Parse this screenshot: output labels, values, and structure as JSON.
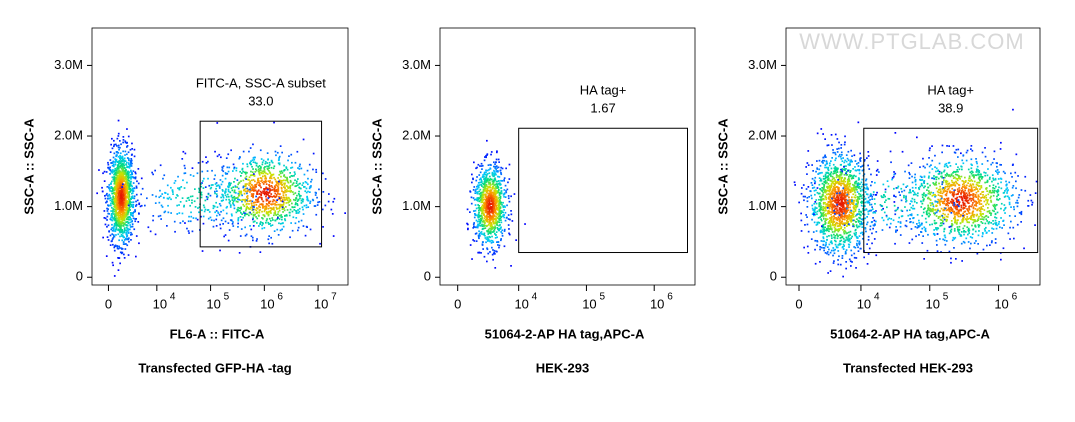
{
  "watermark": "WWW.PTGLAB.COM",
  "chart_data": [
    {
      "type": "scatter",
      "x_label": "FL6-A :: FITC-A",
      "y_label": "SSC-A :: SSC-A",
      "caption": "Transfected GFP-HA -tag",
      "xlim": [
        -3400,
        36000000
      ],
      "ylim": [
        -110000,
        3530000
      ],
      "xticks": [
        0,
        {
          "value": 10000,
          "label": "10",
          "exponent": "4"
        },
        {
          "value": 100000,
          "label": "10",
          "exponent": "5"
        },
        {
          "value": 1000000,
          "label": "10",
          "exponent": "6"
        },
        {
          "value": 10000000,
          "label": "10",
          "exponent": "7"
        }
      ],
      "yticks": [
        0,
        {
          "value": 1000000,
          "label": "1.0M"
        },
        {
          "value": 2000000,
          "label": "2.0M"
        },
        {
          "value": 3000000,
          "label": "3.0M"
        }
      ],
      "gate": {
        "name": "FITC-A, SSC-A subset",
        "percent": 33.0,
        "percent_label": "33.0",
        "x": [
          64000,
          11600000
        ],
        "y": [
          430000,
          2210000
        ]
      },
      "populations": [
        {
          "x": 2500,
          "y": 1150000,
          "sx": 0.12,
          "sy": 330000,
          "n": 1400
        },
        {
          "x": 1000000,
          "y": 1200000,
          "sx": 0.45,
          "sy": 280000,
          "n": 1000
        },
        {
          "x": 60000,
          "y": 1150000,
          "sx": 0.6,
          "sy": 250000,
          "n": 250
        }
      ]
    },
    {
      "type": "scatter",
      "x_label": "51064-2-AP HA tag,APC-A",
      "y_label": "SSC-A :: SSC-A",
      "caption": "HEK-293",
      "xlim": [
        -2900,
        4000000
      ],
      "ylim": [
        -110000,
        3530000
      ],
      "xticks": [
        0,
        {
          "value": 10000,
          "label": "10",
          "exponent": "4"
        },
        {
          "value": 100000,
          "label": "10",
          "exponent": "5"
        },
        {
          "value": 1000000,
          "label": "10",
          "exponent": "6"
        }
      ],
      "yticks": [
        0,
        {
          "value": 1000000,
          "label": "1.0M"
        },
        {
          "value": 2000000,
          "label": "2.0M"
        },
        {
          "value": 3000000,
          "label": "3.0M"
        }
      ],
      "gate": {
        "name": "HA tag+",
        "percent": 1.67,
        "x": [
          10000,
          3100000
        ],
        "y": [
          350000,
          2110000
        ]
      },
      "populations": [
        {
          "x": 5200,
          "y": 1020000,
          "sx": 0.12,
          "sy": 280000,
          "n": 1000
        }
      ]
    },
    {
      "type": "scatter",
      "x_label": "51064-2-AP HA tag,APC-A",
      "y_label": "SSC-A :: SSC-A",
      "caption": "Transfected HEK-293",
      "xlim": [
        -2100,
        4000000
      ],
      "ylim": [
        -110000,
        3530000
      ],
      "xticks": [
        0,
        {
          "value": 10000,
          "label": "10",
          "exponent": "4"
        },
        {
          "value": 100000,
          "label": "10",
          "exponent": "5"
        },
        {
          "value": 1000000,
          "label": "10",
          "exponent": "6"
        }
      ],
      "yticks": [
        0,
        {
          "value": 1000000,
          "label": "1.0M"
        },
        {
          "value": 2000000,
          "label": "2.0M"
        },
        {
          "value": 3000000,
          "label": "3.0M"
        }
      ],
      "gate": {
        "name": "HA tag+",
        "percent": 38.9,
        "x": [
          11000,
          3700000
        ],
        "y": [
          350000,
          2110000
        ]
      },
      "populations": [
        {
          "x": 6500,
          "y": 1050000,
          "sx": 0.22,
          "sy": 350000,
          "n": 1400
        },
        {
          "x": 270000,
          "y": 1100000,
          "sx": 0.4,
          "sy": 300000,
          "n": 1200
        },
        {
          "x": 30000,
          "y": 1100000,
          "sx": 0.5,
          "sy": 280000,
          "n": 200
        }
      ]
    }
  ]
}
